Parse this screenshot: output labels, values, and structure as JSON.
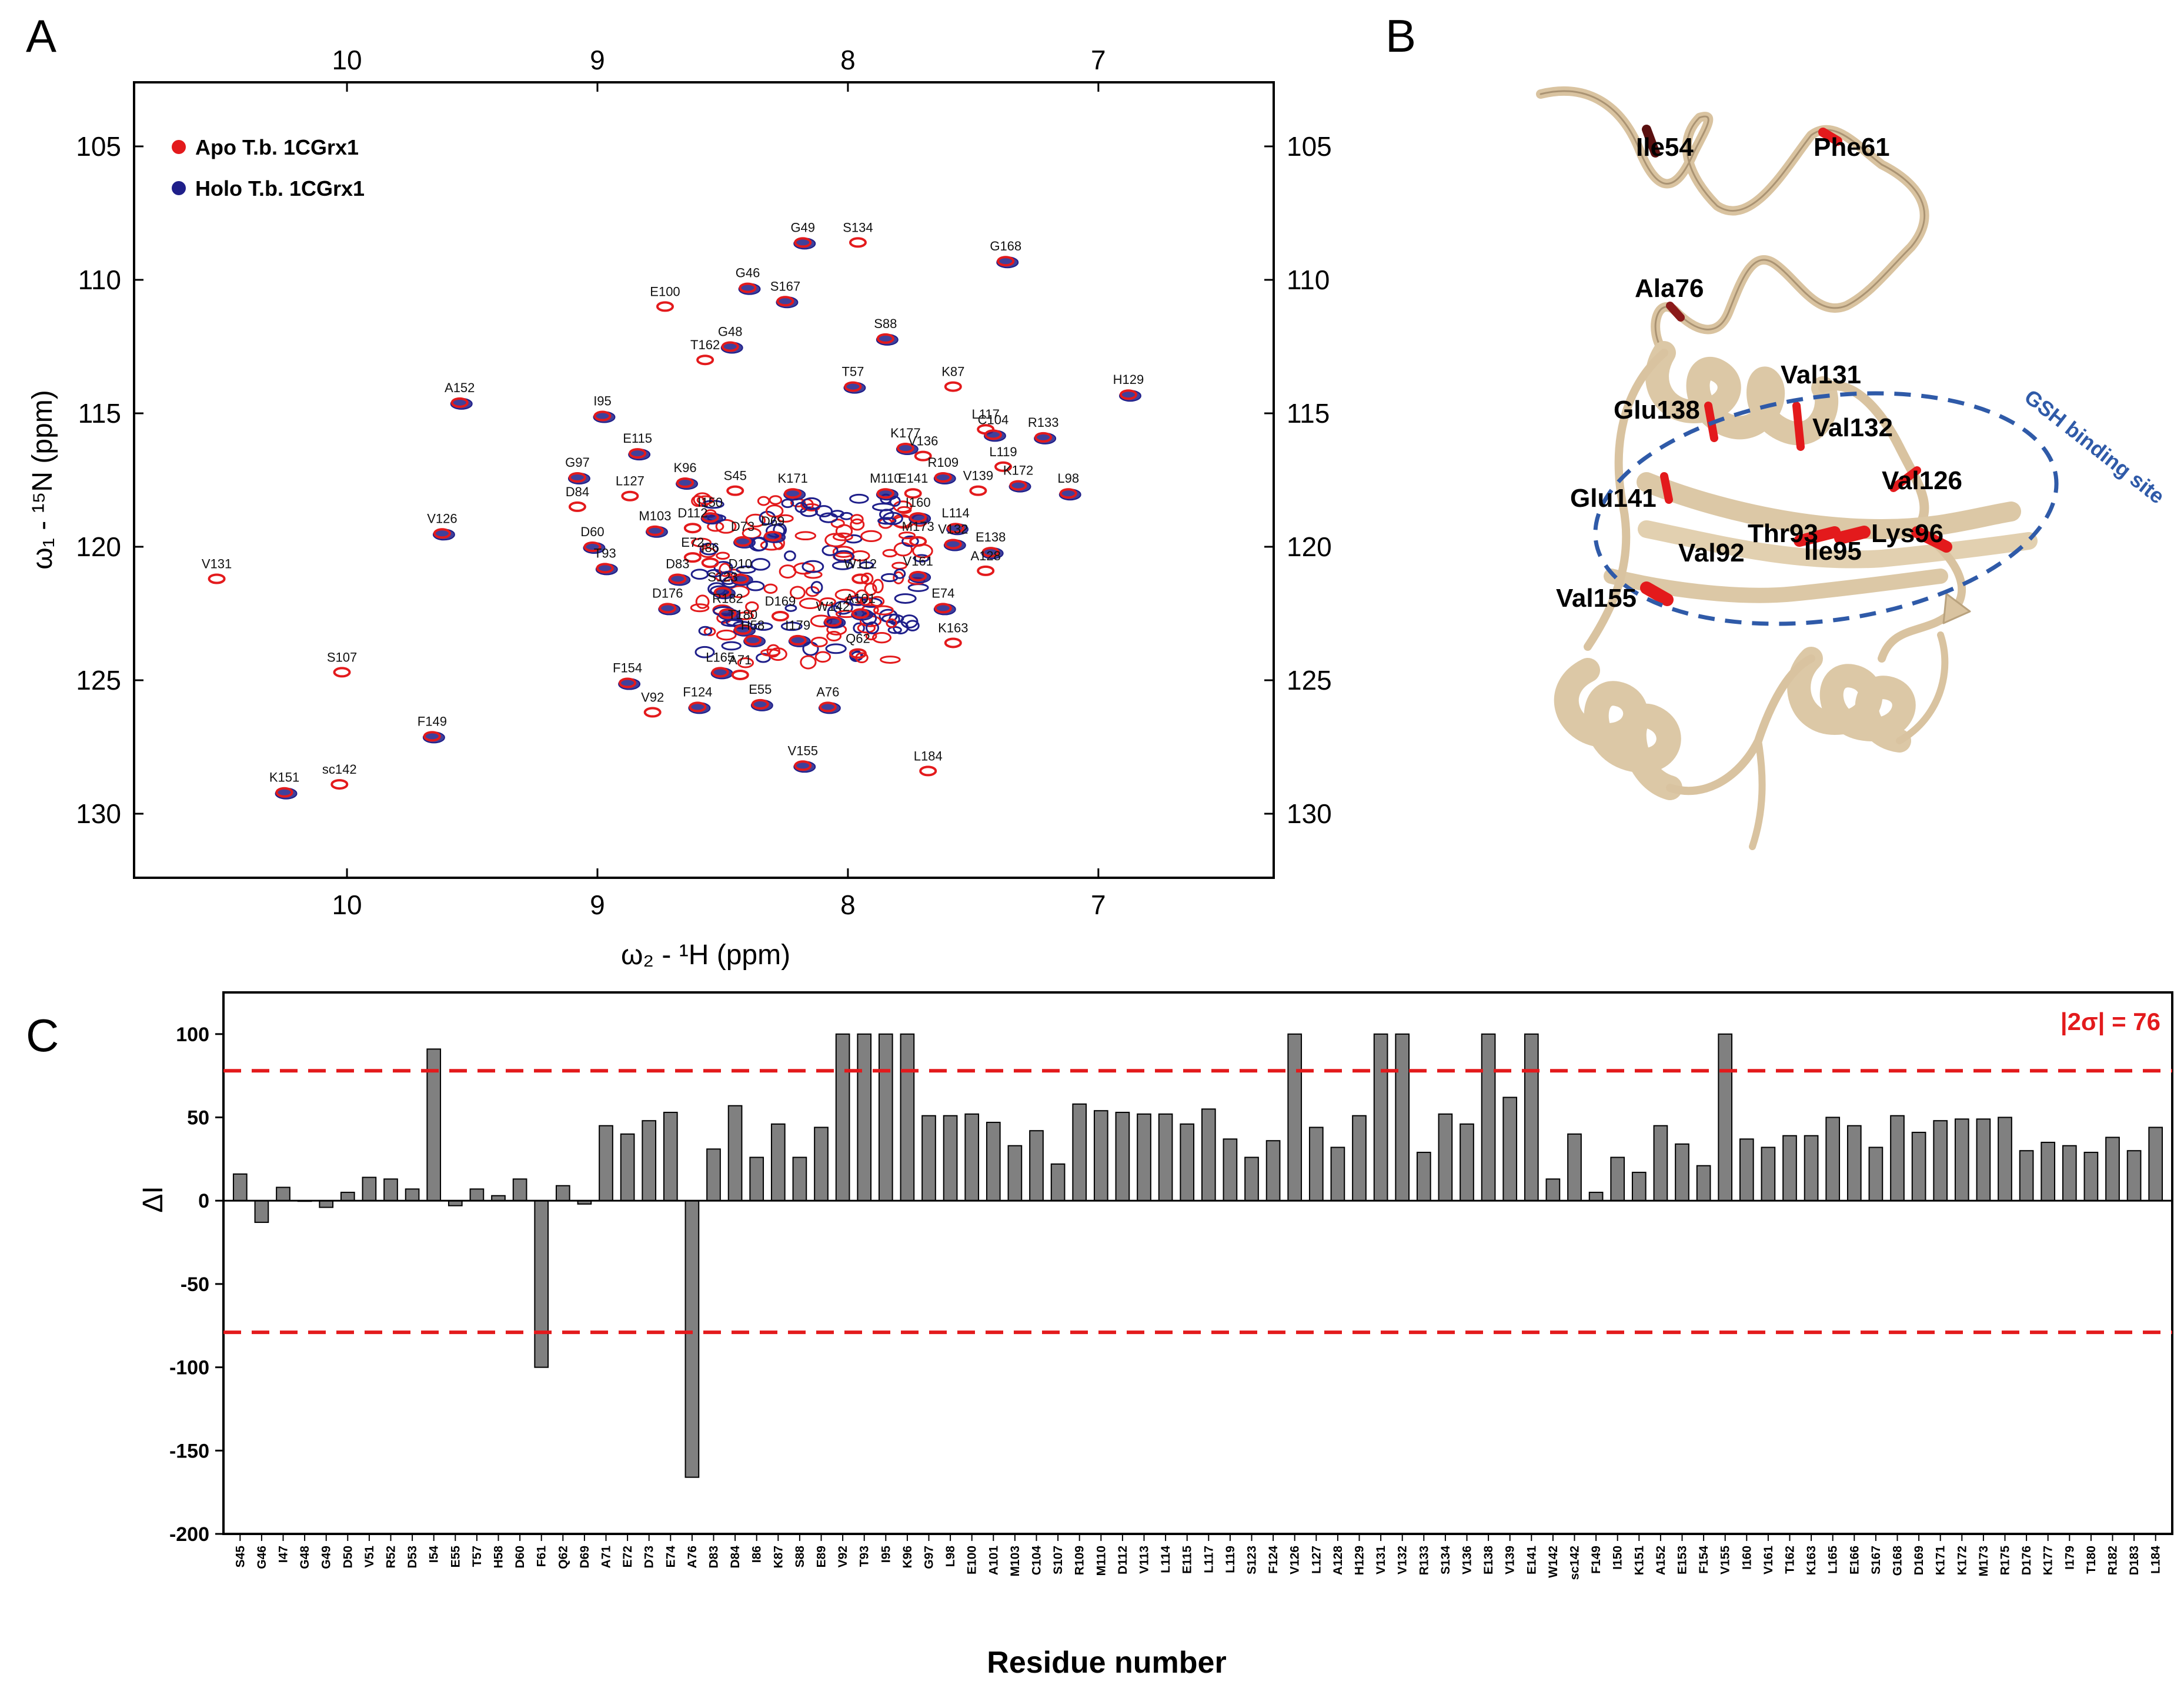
{
  "panels": {
    "a": {
      "letter": "A",
      "x_label": "ω₂ - ¹H  (ppm)",
      "y_label": "ω₁ - ¹⁵N  (ppm)",
      "x_ticks": [
        "10",
        "9",
        "8",
        "7"
      ],
      "y_ticks": [
        "105",
        "110",
        "115",
        "120",
        "125",
        "130"
      ],
      "legend": [
        {
          "label": "Apo T.b. 1CGrx1",
          "color": "#e31a1c"
        },
        {
          "label": "Holo T.b. 1CGrx1",
          "color": "#1f1f8a"
        }
      ],
      "peaks": [
        {
          "name": "V131",
          "h": 10.52,
          "n": 121.2
        },
        {
          "name": "A152",
          "h": 9.55,
          "n": 114.6
        },
        {
          "name": "V126",
          "h": 9.62,
          "n": 119.5
        },
        {
          "name": "S107",
          "h": 10.02,
          "n": 124.7
        },
        {
          "name": "F149",
          "h": 9.66,
          "n": 127.1
        },
        {
          "name": "K151",
          "h": 10.25,
          "n": 129.2
        },
        {
          "name": "sc142",
          "h": 10.03,
          "n": 128.9
        },
        {
          "name": "I95",
          "h": 8.98,
          "n": 115.1
        },
        {
          "name": "G97",
          "h": 9.08,
          "n": 117.4
        },
        {
          "name": "D84",
          "h": 9.08,
          "n": 118.5
        },
        {
          "name": "D60",
          "h": 9.02,
          "n": 120.0
        },
        {
          "name": "T93",
          "h": 8.97,
          "n": 120.8
        },
        {
          "name": "L127",
          "h": 8.87,
          "n": 118.1
        },
        {
          "name": "E115",
          "h": 8.84,
          "n": 116.5
        },
        {
          "name": "M103",
          "h": 8.77,
          "n": 119.4
        },
        {
          "name": "D112",
          "h": 8.62,
          "n": 119.3
        },
        {
          "name": "D176",
          "h": 8.72,
          "n": 122.3
        },
        {
          "name": "D83",
          "h": 8.68,
          "n": 121.2
        },
        {
          "name": "E72",
          "h": 8.62,
          "n": 120.4
        },
        {
          "name": "S123",
          "h": 8.5,
          "n": 121.7
        },
        {
          "name": "F154",
          "h": 8.88,
          "n": 125.1
        },
        {
          "name": "V92",
          "h": 8.78,
          "n": 126.2
        },
        {
          "name": "F124",
          "h": 8.6,
          "n": 126.0
        },
        {
          "name": "L165",
          "h": 8.51,
          "n": 124.7
        },
        {
          "name": "A71",
          "h": 8.43,
          "n": 124.8
        },
        {
          "name": "E55",
          "h": 8.35,
          "n": 125.9
        },
        {
          "name": "T180",
          "h": 8.42,
          "n": 123.1
        },
        {
          "name": "E100",
          "h": 8.73,
          "n": 111.0
        },
        {
          "name": "G46",
          "h": 8.4,
          "n": 110.3
        },
        {
          "name": "G48",
          "h": 8.47,
          "n": 112.5
        },
        {
          "name": "T162",
          "h": 8.57,
          "n": 113.0
        },
        {
          "name": "G49",
          "h": 8.18,
          "n": 108.6
        },
        {
          "name": "S167",
          "h": 8.25,
          "n": 110.8
        },
        {
          "name": "S134",
          "h": 7.96,
          "n": 108.6
        },
        {
          "name": "S88",
          "h": 7.85,
          "n": 112.2
        },
        {
          "name": "T57",
          "h": 7.98,
          "n": 114.0
        },
        {
          "name": "K87",
          "h": 7.58,
          "n": 114.0
        },
        {
          "name": "G168",
          "h": 7.37,
          "n": 109.3
        },
        {
          "name": "H129",
          "h": 6.88,
          "n": 114.3
        },
        {
          "name": "L117",
          "h": 7.45,
          "n": 115.6
        },
        {
          "name": "C104",
          "h": 7.42,
          "n": 115.8
        },
        {
          "name": "R133",
          "h": 7.22,
          "n": 115.9
        },
        {
          "name": "L119",
          "h": 7.38,
          "n": 117.0
        },
        {
          "name": "L98",
          "h": 7.12,
          "n": 118.0
        },
        {
          "name": "K177",
          "h": 7.77,
          "n": 116.3
        },
        {
          "name": "V136",
          "h": 7.7,
          "n": 116.6
        },
        {
          "name": "R109",
          "h": 7.62,
          "n": 117.4
        },
        {
          "name": "K172",
          "h": 7.32,
          "n": 117.7
        },
        {
          "name": "V139",
          "h": 7.48,
          "n": 117.9
        },
        {
          "name": "K96",
          "h": 8.65,
          "n": 117.6
        },
        {
          "name": "I150",
          "h": 8.55,
          "n": 118.9
        },
        {
          "name": "S45",
          "h": 8.45,
          "n": 117.9
        },
        {
          "name": "K171",
          "h": 8.22,
          "n": 118.0
        },
        {
          "name": "M110",
          "h": 7.85,
          "n": 118.0
        },
        {
          "name": "E141",
          "h": 7.74,
          "n": 118.0
        },
        {
          "name": "I160",
          "h": 7.72,
          "n": 118.9
        },
        {
          "name": "L114",
          "h": 7.57,
          "n": 119.3
        },
        {
          "name": "M173",
          "h": 7.72,
          "n": 119.8
        },
        {
          "name": "V132",
          "h": 7.58,
          "n": 119.9
        },
        {
          "name": "E138",
          "h": 7.43,
          "n": 120.2
        },
        {
          "name": "A128",
          "h": 7.45,
          "n": 120.9
        },
        {
          "name": "V161",
          "h": 7.72,
          "n": 121.1
        },
        {
          "name": "E74",
          "h": 7.62,
          "n": 122.3
        },
        {
          "name": "K163",
          "h": 7.58,
          "n": 123.6
        },
        {
          "name": "D73",
          "h": 8.42,
          "n": 119.8
        },
        {
          "name": "D69",
          "h": 8.3,
          "n": 119.6
        },
        {
          "name": "I86",
          "h": 8.55,
          "n": 120.6
        },
        {
          "name": "D10",
          "h": 8.43,
          "n": 121.2
        },
        {
          "name": "R182",
          "h": 8.48,
          "n": 122.5
        },
        {
          "name": "D169",
          "h": 8.27,
          "n": 122.6
        },
        {
          "name": "W142",
          "h": 8.06,
          "n": 122.8
        },
        {
          "name": "A101",
          "h": 7.95,
          "n": 122.5
        },
        {
          "name": "W112",
          "h": 7.95,
          "n": 121.2
        },
        {
          "name": "H58",
          "h": 8.38,
          "n": 123.5
        },
        {
          "name": "I179",
          "h": 8.2,
          "n": 123.5
        },
        {
          "name": "Q62",
          "h": 7.96,
          "n": 124.0
        },
        {
          "name": "A76",
          "h": 8.08,
          "n": 126.0
        },
        {
          "name": "V155",
          "h": 8.18,
          "n": 128.2
        },
        {
          "name": "L184",
          "h": 7.68,
          "n": 128.4
        }
      ]
    },
    "b": {
      "letter": "B",
      "residues": [
        "Ile54",
        "Phe61",
        "Ala76",
        "Val131",
        "Glu138",
        "Val132",
        "Glu141",
        "Val126",
        "Thr93",
        "Lys96",
        "Val92",
        "Ile95",
        "Val155"
      ],
      "site_label": "GSH binding site"
    },
    "c": {
      "letter": "C",
      "y_label": "ΔI",
      "x_title": "Residue number",
      "sigma_label": "|2σ| = 76",
      "y_ticks": [
        "100",
        "50",
        "0",
        "-50",
        "-100",
        "-150",
        "-200"
      ]
    }
  },
  "chart_data": {
    "type": "bar",
    "title": "",
    "xlabel": "Residue number",
    "ylabel": "ΔI",
    "ylim": [
      -200,
      125
    ],
    "threshold": 76,
    "categories": [
      "S45",
      "G46",
      "I47",
      "G48",
      "G49",
      "D50",
      "V51",
      "R52",
      "D53",
      "I54",
      "E55",
      "T57",
      "H58",
      "D60",
      "F61",
      "Q62",
      "D69",
      "A71",
      "E72",
      "D73",
      "E74",
      "A76",
      "D83",
      "D84",
      "I86",
      "K87",
      "S88",
      "E89",
      "V92",
      "T93",
      "I95",
      "K96",
      "G97",
      "L98",
      "E100",
      "A101",
      "M103",
      "C104",
      "S107",
      "R109",
      "M110",
      "D112",
      "V113",
      "L114",
      "E115",
      "L117",
      "L119",
      "S123",
      "F124",
      "V126",
      "L127",
      "A128",
      "H129",
      "V131",
      "V132",
      "R133",
      "S134",
      "V136",
      "E138",
      "V139",
      "E141",
      "W142",
      "sc142",
      "F149",
      "I150",
      "K151",
      "A152",
      "E153",
      "F154",
      "V155",
      "I160",
      "V161",
      "T162",
      "K163",
      "L165",
      "E166",
      "S167",
      "G168",
      "D169",
      "K171",
      "K172",
      "M173",
      "R175",
      "D176",
      "K177",
      "I179",
      "T180",
      "R182",
      "D183",
      "L184"
    ],
    "values": [
      16,
      -13,
      8,
      0,
      -4,
      5,
      14,
      13,
      7,
      91,
      -3,
      7,
      3,
      13,
      -100,
      9,
      -2,
      45,
      40,
      48,
      53,
      -166,
      31,
      57,
      26,
      46,
      26,
      44,
      100,
      100,
      100,
      100,
      51,
      51,
      52,
      47,
      33,
      42,
      22,
      58,
      54,
      53,
      52,
      52,
      46,
      55,
      37,
      26,
      36,
      100,
      44,
      32,
      51,
      100,
      100,
      29,
      52,
      46,
      100,
      62,
      100,
      13,
      40,
      5,
      26,
      17,
      45,
      34,
      21,
      100,
      37,
      32,
      39,
      39,
      50,
      45,
      32,
      51,
      41,
      48,
      49,
      49,
      50,
      30,
      35,
      33,
      29,
      38,
      30,
      44
    ]
  }
}
